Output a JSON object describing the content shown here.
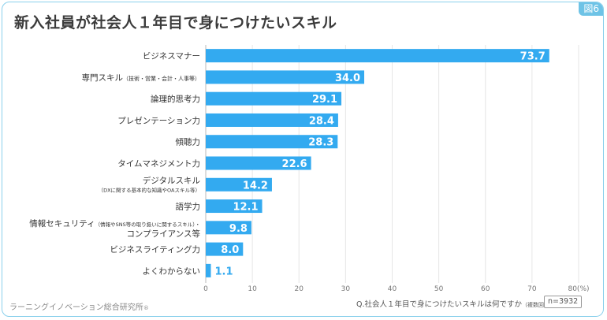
{
  "figure_tag": "図6",
  "title": "新入社員が社会人１年目で身につけたいスキル",
  "source": "ラーニングイノベーション総合研究所",
  "question": {
    "main": "Q.社会人１年目で身につけたいスキルは何ですか",
    "sub": "（複数回答）"
  },
  "sample_size": "n=3932",
  "colors": {
    "bar": "#33aaf0",
    "label_blue": "#33aaf0",
    "frame": "#8ad0ec"
  },
  "chart_data": {
    "type": "bar",
    "orientation": "horizontal",
    "title": "新入社員が社会人１年目で身につけたいスキル",
    "unit": "(%)",
    "xlim": [
      0,
      80
    ],
    "xticks": [
      0,
      10,
      20,
      30,
      40,
      50,
      60,
      70,
      80
    ],
    "xtick_labels": [
      "0",
      "10",
      "20",
      "30",
      "40",
      "50",
      "60",
      "70",
      "80(%)"
    ],
    "grid": true,
    "categories": [
      {
        "lines": [
          "ビジネスマナー"
        ],
        "small": ""
      },
      {
        "lines": [
          "専門スキル"
        ],
        "small": "（技術・営業・会計・人事等）"
      },
      {
        "lines": [
          "論理的思考力"
        ],
        "small": ""
      },
      {
        "lines": [
          "プレゼンテーション力"
        ],
        "small": ""
      },
      {
        "lines": [
          "傾聴力"
        ],
        "small": ""
      },
      {
        "lines": [
          "タイムマネジメント力"
        ],
        "small": ""
      },
      {
        "lines": [
          "デジタルスキル",
          "（DXに関する基本的な知識やOAスキル等）"
        ],
        "small": ""
      },
      {
        "lines": [
          "語学力"
        ],
        "small": ""
      },
      {
        "lines": [
          "情報セキュリティ",
          "コンプライアンス等"
        ],
        "small": "（情報やSNS等の取り扱いに関するスキル）・"
      },
      {
        "lines": [
          "ビジネスライティング力"
        ],
        "small": ""
      },
      {
        "lines": [
          "よくわからない"
        ],
        "small": ""
      }
    ],
    "values": [
      73.7,
      34.0,
      29.1,
      28.4,
      28.3,
      22.6,
      14.2,
      12.1,
      9.8,
      8.0,
      1.1
    ],
    "value_labels": [
      "73.7",
      "34.0",
      "29.1",
      "28.4",
      "28.3",
      "22.6",
      "14.2",
      "12.1",
      "9.8",
      "8.0",
      "1.1"
    ]
  }
}
